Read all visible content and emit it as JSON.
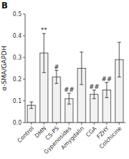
{
  "chart_data": {
    "type": "bar",
    "panel_label": "B",
    "ylabel": "α-SMA/GAPDH",
    "categories": [
      "Control",
      "DMN",
      "CS-PS",
      "Gypenosides",
      "Amygdalin",
      "CGA",
      "FZHY",
      "Colchicine"
    ],
    "values": [
      0.08,
      0.32,
      0.21,
      0.11,
      0.25,
      0.13,
      0.15,
      0.29
    ],
    "errors": [
      0.015,
      0.09,
      0.03,
      0.025,
      0.075,
      0.02,
      0.035,
      0.08
    ],
    "annotations": [
      null,
      "**",
      "#",
      "##",
      null,
      "##",
      "##",
      null
    ],
    "color": "#f2f2f2",
    "ylim": [
      0,
      0.5
    ],
    "yticks": [
      {
        "value": 0.0,
        "label": "0.0"
      },
      0.1,
      0.2,
      0.3,
      0.4,
      0.5
    ],
    "grid": false
  }
}
